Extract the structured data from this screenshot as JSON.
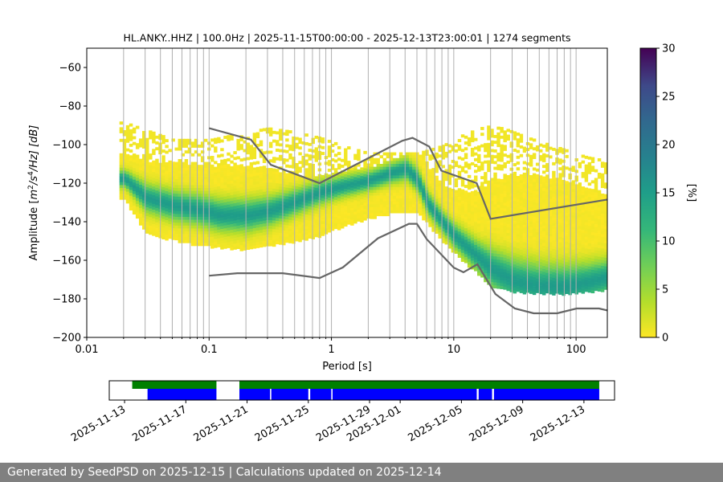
{
  "chart_data": [
    {
      "type": "heatmap",
      "title": "HL.ANKY..HHZ | 100.0Hz | 2025-11-15T00:00:00 - 2025-12-13T23:00:01 | 1274 segments",
      "xlabel": "Period [s]",
      "ylabel": "Amplitude [m²/s⁴/Hz] [dB]",
      "ylabel_parts": {
        "pre": "Amplitude [",
        "m": "m",
        "sup2": "2",
        "s": "/s",
        "sup4": "4",
        "post": "/Hz] [dB]"
      },
      "xscale": "log",
      "xlim": [
        0.01,
        180
      ],
      "ylim": [
        -200,
        -50
      ],
      "xticks": [
        0.01,
        0.1,
        1,
        10,
        100
      ],
      "xtick_labels": [
        "0.01",
        "0.1",
        "1",
        "10",
        "100"
      ],
      "yticks": [
        -200,
        -180,
        -160,
        -140,
        -120,
        -100,
        -80,
        -60
      ],
      "ytick_labels": [
        "−200",
        "−180",
        "−160",
        "−140",
        "−120",
        "−100",
        "−80",
        "−60"
      ],
      "grid": "vertical at log minor/major periods",
      "density_mode": [
        [
          0.02,
          -117
        ],
        [
          0.03,
          -127
        ],
        [
          0.05,
          -131
        ],
        [
          0.08,
          -133
        ],
        [
          0.12,
          -136
        ],
        [
          0.2,
          -136
        ],
        [
          0.3,
          -134
        ],
        [
          0.5,
          -129
        ],
        [
          0.8,
          -124
        ],
        [
          1.2,
          -121
        ],
        [
          2,
          -118
        ],
        [
          3,
          -114
        ],
        [
          4,
          -112
        ],
        [
          5,
          -118
        ],
        [
          6,
          -130
        ],
        [
          8,
          -140
        ],
        [
          10,
          -147
        ],
        [
          15,
          -157
        ],
        [
          20,
          -164
        ],
        [
          30,
          -170
        ],
        [
          50,
          -173
        ],
        [
          80,
          -173
        ],
        [
          120,
          -171
        ],
        [
          180,
          -168
        ]
      ],
      "density_band": [
        [
          0.02,
          -104,
          -127
        ],
        [
          0.03,
          -108,
          -145
        ],
        [
          0.05,
          -108,
          -148
        ],
        [
          0.08,
          -110,
          -151
        ],
        [
          0.12,
          -110,
          -152
        ],
        [
          0.2,
          -110,
          -153
        ],
        [
          0.3,
          -112,
          -151
        ],
        [
          0.5,
          -115,
          -149
        ],
        [
          0.8,
          -115,
          -146
        ],
        [
          1.2,
          -113,
          -141
        ],
        [
          2,
          -111,
          -137
        ],
        [
          3,
          -107,
          -134
        ],
        [
          4,
          -104,
          -133
        ],
        [
          5,
          -104,
          -134
        ],
        [
          6,
          -110,
          -140
        ],
        [
          8,
          -120,
          -149
        ],
        [
          10,
          -122,
          -155
        ],
        [
          15,
          -124,
          -165
        ],
        [
          20,
          -118,
          -172
        ],
        [
          30,
          -115,
          -175
        ],
        [
          50,
          -115,
          -176
        ],
        [
          80,
          -118,
          -176
        ],
        [
          120,
          -122,
          -175
        ],
        [
          180,
          -126,
          -174
        ]
      ],
      "density_sparse_top": [
        [
          0.02,
          -88
        ],
        [
          0.05,
          -97
        ],
        [
          0.1,
          -97
        ],
        [
          0.2,
          -93
        ],
        [
          0.3,
          -91
        ],
        [
          0.5,
          -93
        ],
        [
          0.8,
          -96
        ],
        [
          1.2,
          -100
        ],
        [
          2,
          -104
        ],
        [
          3,
          -104
        ],
        [
          5,
          -104
        ],
        [
          8,
          -100
        ],
        [
          12,
          -94
        ],
        [
          18,
          -90
        ],
        [
          25,
          -91
        ],
        [
          40,
          -96
        ],
        [
          70,
          -101
        ],
        [
          120,
          -106
        ],
        [
          180,
          -108
        ]
      ],
      "nhnm": [
        [
          0.1,
          -91.5
        ],
        [
          0.22,
          -97.4
        ],
        [
          0.32,
          -110.5
        ],
        [
          0.8,
          -120
        ],
        [
          3.8,
          -98
        ],
        [
          4.6,
          -96.5
        ],
        [
          6.3,
          -101
        ],
        [
          7.9,
          -113.5
        ],
        [
          15.4,
          -120
        ],
        [
          20,
          -138.5
        ],
        [
          180,
          -128.5
        ]
      ],
      "nlnm": [
        [
          0.1,
          -168
        ],
        [
          0.17,
          -166.7
        ],
        [
          0.4,
          -166.7
        ],
        [
          0.8,
          -169.2
        ],
        [
          1.24,
          -163.7
        ],
        [
          2.4,
          -148.6
        ],
        [
          4.3,
          -141.1
        ],
        [
          5,
          -141.1
        ],
        [
          6,
          -149
        ],
        [
          10,
          -163.8
        ],
        [
          12,
          -166.2
        ],
        [
          15.6,
          -162.1
        ],
        [
          21.9,
          -177.5
        ],
        [
          31.6,
          -185
        ],
        [
          45,
          -187.5
        ],
        [
          70,
          -187.5
        ],
        [
          101,
          -185
        ],
        [
          154,
          -185
        ],
        [
          180,
          -186
        ]
      ],
      "colorbar": {
        "label": "[%]",
        "ticks": [
          0,
          5,
          10,
          15,
          20,
          25,
          30
        ],
        "tick_labels": [
          "0",
          "5",
          "10",
          "15",
          "20",
          "25",
          "30"
        ],
        "range": [
          0,
          30
        ]
      }
    },
    {
      "type": "timeline",
      "x_tick_labels": [
        "2025-11-13",
        "2025-11-17",
        "2025-11-21",
        "2025-11-25",
        "2025-11-29",
        "2025-12-01",
        "2025-12-05",
        "2025-12-09",
        "2025-12-13"
      ],
      "x_tick_dates": [
        "2025-11-13",
        "2025-11-17",
        "2025-11-21",
        "2025-11-25",
        "2025-11-29",
        "2025-12-01",
        "2025-12-05",
        "2025-12-09",
        "2025-12-13"
      ],
      "xlim": [
        "2025-11-12",
        "2025-12-15"
      ],
      "green_coverage": [
        [
          "2025-11-13T12:00",
          "2025-11-19T00:00"
        ],
        [
          "2025-11-20T12:00",
          "2025-12-14T00:00"
        ]
      ],
      "blue_coverage": [
        [
          "2025-11-14T12:00",
          "2025-11-19T00:00"
        ],
        [
          "2025-11-20T12:00",
          "2025-11-22T12:00"
        ],
        [
          "2025-11-22T14:00",
          "2025-11-25T00:00"
        ],
        [
          "2025-11-25T03:00",
          "2025-11-26T12:00"
        ],
        [
          "2025-11-26T14:00",
          "2025-12-06T00:00"
        ],
        [
          "2025-12-06T03:00",
          "2025-12-07T00:00"
        ],
        [
          "2025-12-07T03:00",
          "2025-12-14T00:00"
        ]
      ],
      "colors": {
        "green": "#008000",
        "blue": "#0000ff"
      }
    }
  ],
  "footer": {
    "text": "Generated by SeedPSD on 2025-12-15 | Calculations updated on 2025-12-14"
  },
  "colors": {
    "footer_bg": "#808080",
    "model_line": "#666666",
    "grid": "#b0b0b0"
  }
}
